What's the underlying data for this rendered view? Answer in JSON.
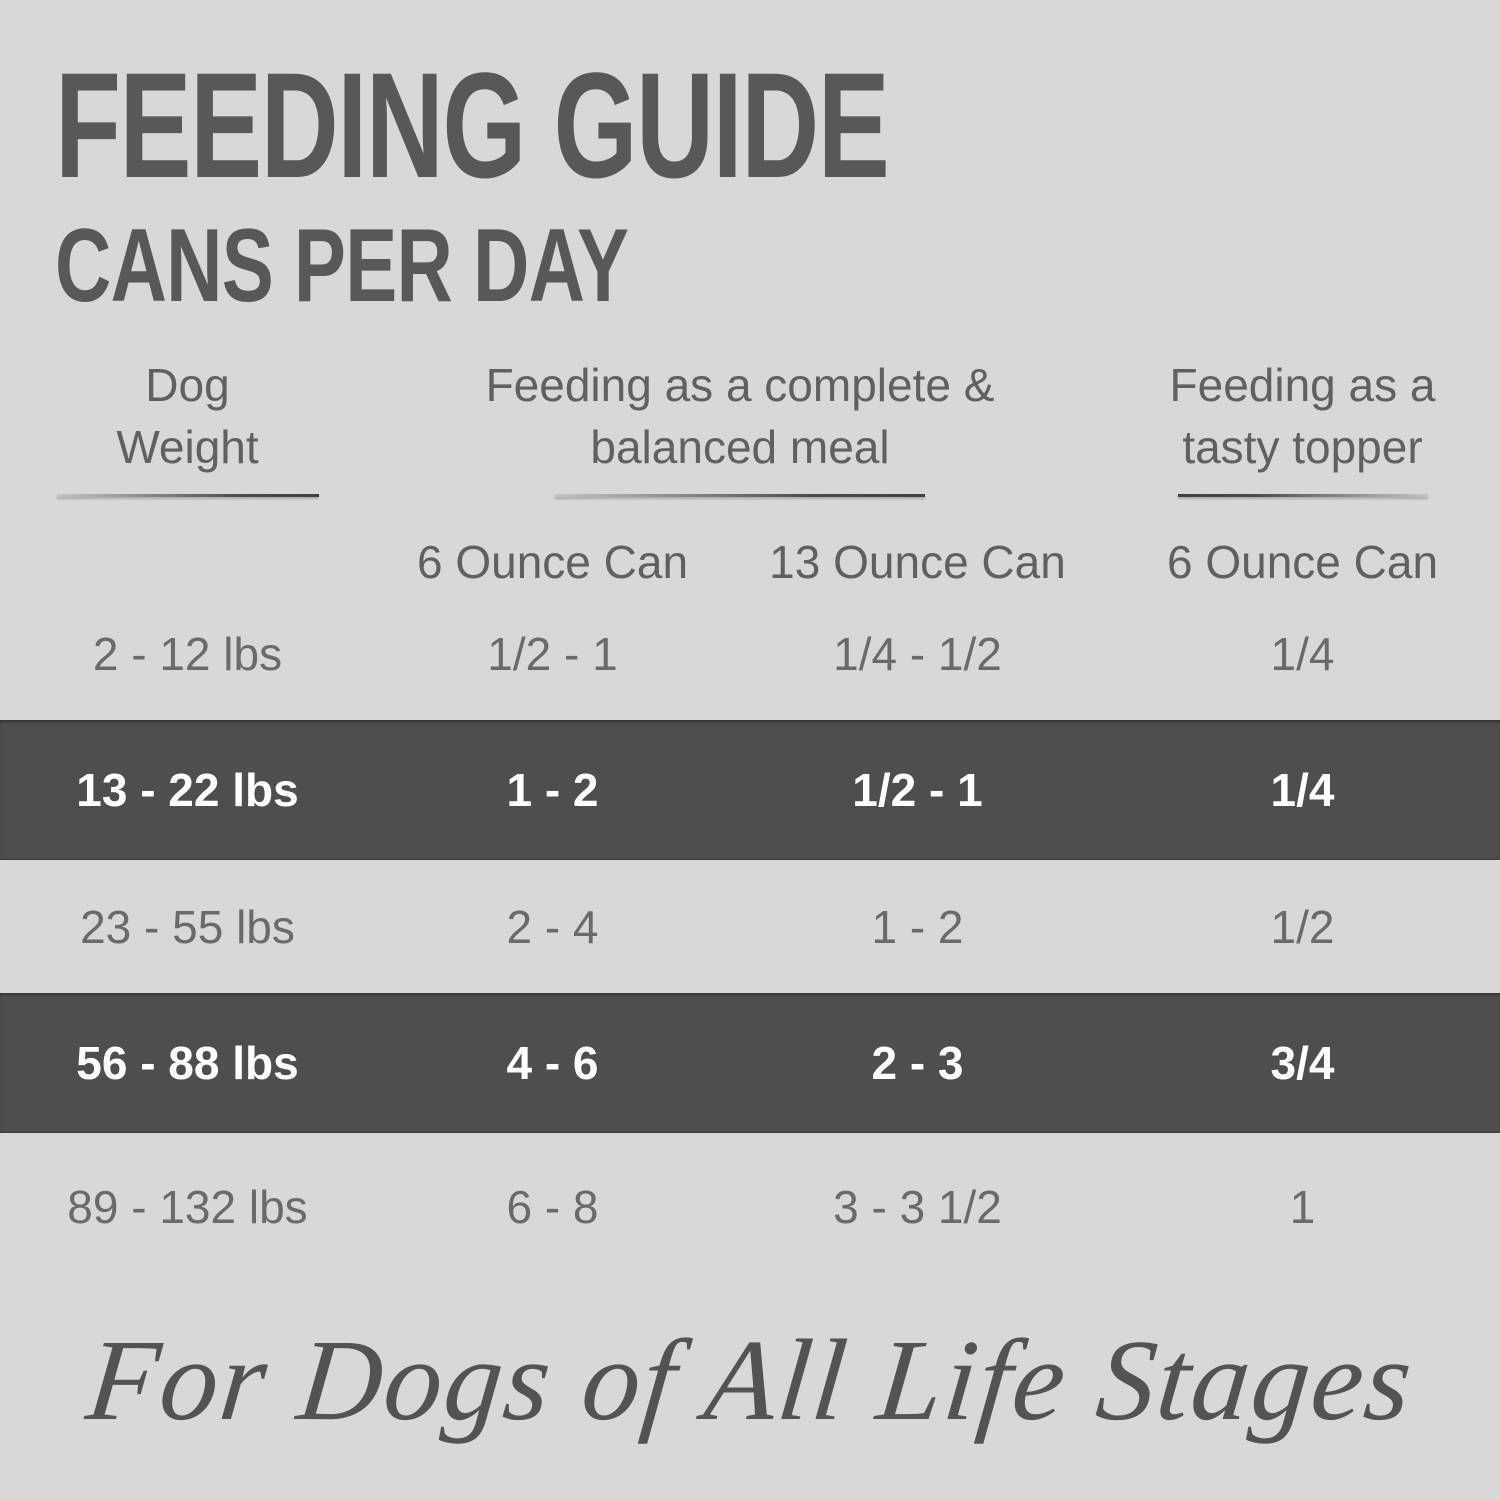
{
  "colors": {
    "page_background": "#d7d8da",
    "highlight_row_background": "#4e4e51",
    "title_text": "#58585b",
    "header_text": "#606063",
    "body_text": "#6a6a6d",
    "highlight_row_text": "#ffffff",
    "tagline_text": "#535356"
  },
  "header": {
    "title": "FEEDING GUIDE",
    "subtitle": "CANS PER DAY"
  },
  "table": {
    "column_groups": [
      {
        "line1": "Dog",
        "line2": "Weight"
      },
      {
        "line1": "Feeding as a complete &",
        "line2": "balanced meal"
      },
      {
        "line1": "Feeding as a",
        "line2": "tasty topper"
      }
    ],
    "subheaders": [
      "6 Ounce Can",
      "13 Ounce Can",
      "6 Ounce Can"
    ],
    "rows": [
      {
        "weight": "2 - 12 lbs",
        "complete_6oz": "1/2 - 1",
        "complete_13oz": "1/4 - 1/2",
        "topper_6oz": "1/4",
        "highlighted": false
      },
      {
        "weight": "13 - 22 lbs",
        "complete_6oz": "1 - 2",
        "complete_13oz": "1/2 - 1",
        "topper_6oz": "1/4",
        "highlighted": true
      },
      {
        "weight": "23 - 55 lbs",
        "complete_6oz": "2 - 4",
        "complete_13oz": "1 - 2",
        "topper_6oz": "1/2",
        "highlighted": false
      },
      {
        "weight": "56 - 88 lbs",
        "complete_6oz": "4 - 6",
        "complete_13oz": "2 - 3",
        "topper_6oz": "3/4",
        "highlighted": true
      },
      {
        "weight": "89 - 132 lbs",
        "complete_6oz": "6 - 8",
        "complete_13oz": "3 - 3 1/2",
        "topper_6oz": "1",
        "highlighted": false
      }
    ]
  },
  "footer": {
    "tagline": "For Dogs of All Life Stages"
  }
}
